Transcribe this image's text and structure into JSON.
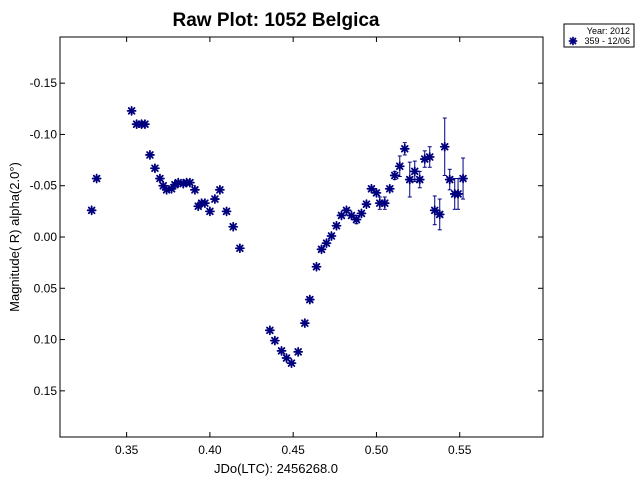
{
  "chart_data": {
    "type": "scatter",
    "title": "Raw Plot: 1052 Belgica",
    "xlabel": "JDo(LTC): 2456268.0",
    "ylabel": "Magnitude( R) alpha(2.0°)",
    "xlim": [
      0.31,
      0.6
    ],
    "ylim": [
      0.195,
      -0.195
    ],
    "y_inverted": true,
    "grid": false,
    "x_ticks": [
      0.35,
      0.4,
      0.45,
      0.5,
      0.55
    ],
    "x_tick_labels": [
      "0.35",
      "0.40",
      "0.45",
      "0.50",
      "0.55"
    ],
    "y_ticks": [
      -0.15,
      -0.1,
      -0.05,
      0.0,
      0.05,
      0.1,
      0.15
    ],
    "y_tick_labels": [
      "-0.15",
      "-0.10",
      "-0.05",
      "0.00",
      "0.05",
      "0.10",
      "0.15"
    ],
    "marker_color": "#00007f",
    "legend": {
      "placement": "top-right outside",
      "title": "Year: 2012",
      "entries": [
        "359 - 12/06"
      ]
    },
    "series": [
      {
        "name": "359 - 12/06",
        "points": [
          {
            "x": 0.329,
            "y": -0.026
          },
          {
            "x": 0.332,
            "y": -0.057
          },
          {
            "x": 0.353,
            "y": -0.123
          },
          {
            "x": 0.356,
            "y": -0.11
          },
          {
            "x": 0.359,
            "y": -0.11
          },
          {
            "x": 0.361,
            "y": -0.11
          },
          {
            "x": 0.364,
            "y": -0.08
          },
          {
            "x": 0.367,
            "y": -0.067
          },
          {
            "x": 0.37,
            "y": -0.057
          },
          {
            "x": 0.372,
            "y": -0.05
          },
          {
            "x": 0.374,
            "y": -0.046
          },
          {
            "x": 0.377,
            "y": -0.047
          },
          {
            "x": 0.379,
            "y": -0.051
          },
          {
            "x": 0.381,
            "y": -0.053
          },
          {
            "x": 0.384,
            "y": -0.052
          },
          {
            "x": 0.386,
            "y": -0.053
          },
          {
            "x": 0.388,
            "y": -0.053
          },
          {
            "x": 0.391,
            "y": -0.046
          },
          {
            "x": 0.393,
            "y": -0.03
          },
          {
            "x": 0.395,
            "y": -0.033
          },
          {
            "x": 0.397,
            "y": -0.033
          },
          {
            "x": 0.4,
            "y": -0.025
          },
          {
            "x": 0.403,
            "y": -0.037
          },
          {
            "x": 0.406,
            "y": -0.046
          },
          {
            "x": 0.41,
            "y": -0.025
          },
          {
            "x": 0.414,
            "y": -0.01
          },
          {
            "x": 0.418,
            "y": 0.011
          },
          {
            "x": 0.436,
            "y": 0.091
          },
          {
            "x": 0.439,
            "y": 0.101
          },
          {
            "x": 0.443,
            "y": 0.111
          },
          {
            "x": 0.446,
            "y": 0.118
          },
          {
            "x": 0.449,
            "y": 0.123
          },
          {
            "x": 0.453,
            "y": 0.112
          },
          {
            "x": 0.457,
            "y": 0.084
          },
          {
            "x": 0.46,
            "y": 0.061
          },
          {
            "x": 0.464,
            "y": 0.029
          },
          {
            "x": 0.467,
            "y": 0.012
          },
          {
            "x": 0.47,
            "y": 0.006
          },
          {
            "x": 0.473,
            "y": -0.001
          },
          {
            "x": 0.476,
            "y": -0.011
          },
          {
            "x": 0.479,
            "y": -0.021
          },
          {
            "x": 0.482,
            "y": -0.026
          },
          {
            "x": 0.485,
            "y": -0.021
          },
          {
            "x": 0.488,
            "y": -0.017,
            "err": 0.004
          },
          {
            "x": 0.491,
            "y": -0.023
          },
          {
            "x": 0.494,
            "y": -0.032
          },
          {
            "x": 0.497,
            "y": -0.047
          },
          {
            "x": 0.5,
            "y": -0.043
          },
          {
            "x": 0.502,
            "y": -0.033,
            "err": 0.006
          },
          {
            "x": 0.505,
            "y": -0.033,
            "err": 0.006
          },
          {
            "x": 0.508,
            "y": -0.047
          },
          {
            "x": 0.511,
            "y": -0.06,
            "err": 0.004
          },
          {
            "x": 0.514,
            "y": -0.069,
            "err": 0.01
          },
          {
            "x": 0.517,
            "y": -0.086,
            "err": 0.006
          },
          {
            "x": 0.52,
            "y": -0.056,
            "err": 0.017
          },
          {
            "x": 0.523,
            "y": -0.064,
            "err": 0.01
          },
          {
            "x": 0.526,
            "y": -0.056,
            "err": 0.008
          },
          {
            "x": 0.529,
            "y": -0.076,
            "err": 0.008
          },
          {
            "x": 0.532,
            "y": -0.078,
            "err": 0.01
          },
          {
            "x": 0.535,
            "y": -0.026,
            "err": 0.014
          },
          {
            "x": 0.538,
            "y": -0.022,
            "err": 0.015
          },
          {
            "x": 0.541,
            "y": -0.088,
            "err": 0.028
          },
          {
            "x": 0.544,
            "y": -0.056,
            "err": 0.01
          },
          {
            "x": 0.547,
            "y": -0.042,
            "err": 0.015
          },
          {
            "x": 0.549,
            "y": -0.042,
            "err": 0.015
          },
          {
            "x": 0.552,
            "y": -0.057,
            "err": 0.02
          }
        ]
      }
    ]
  }
}
